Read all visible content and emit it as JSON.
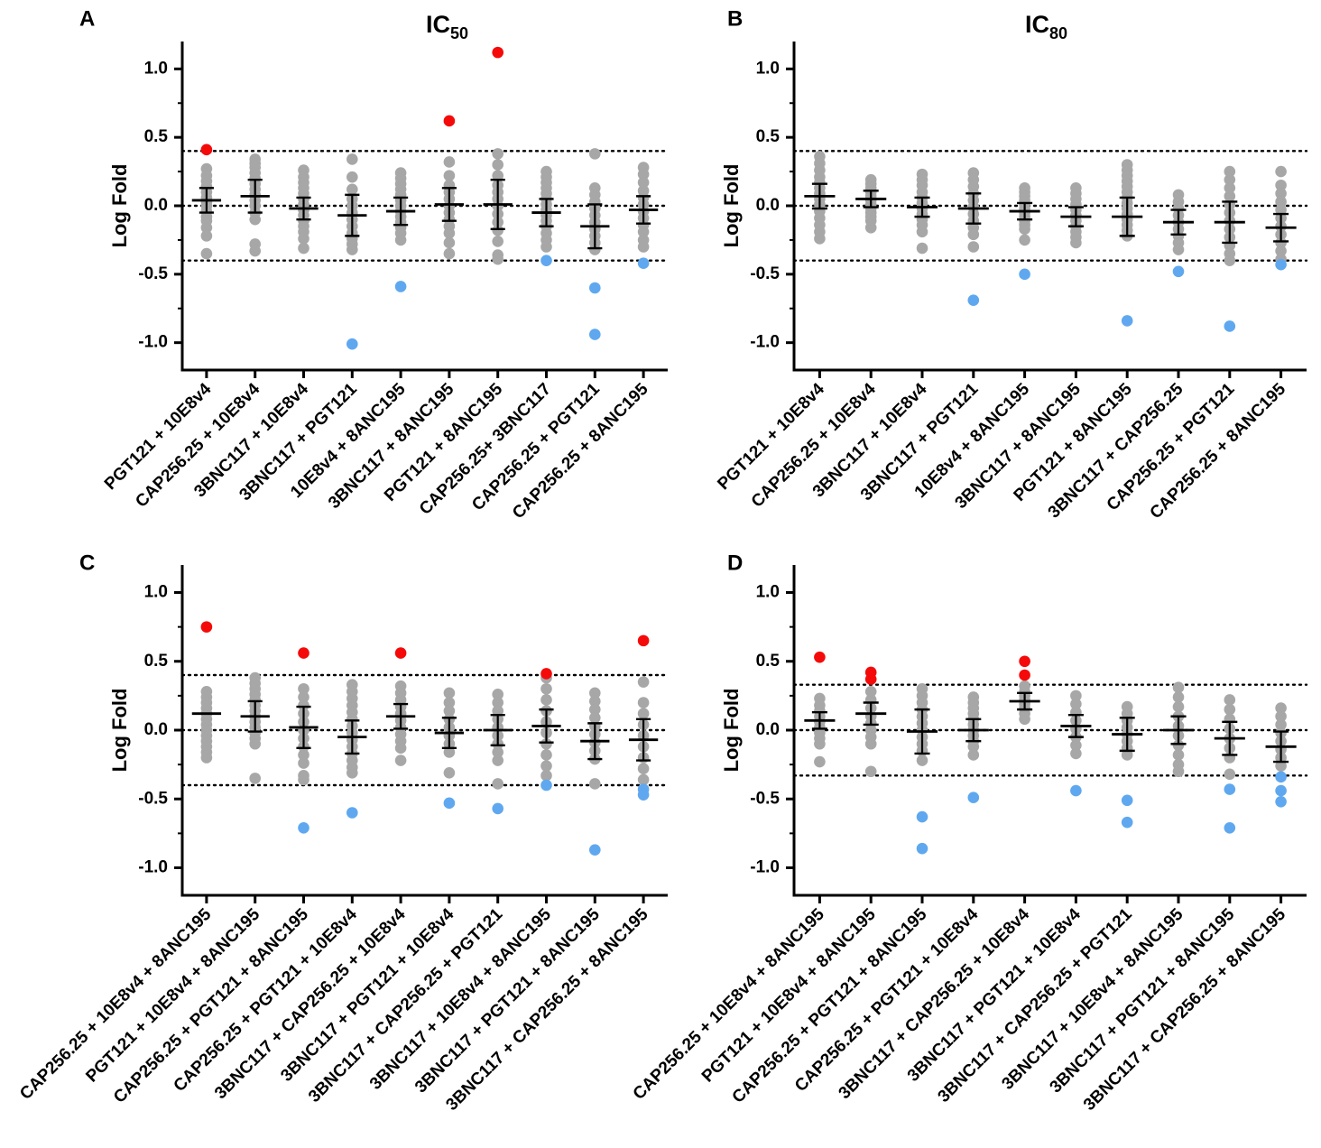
{
  "colors": {
    "gray": "#a7a7a7",
    "red": "#f50a0a",
    "blue": "#5fa8ef",
    "axis": "#000000"
  },
  "chart_data": [
    {
      "type": "scatter",
      "panel": "A",
      "title_main": "IC",
      "title_sub": "50",
      "ylabel": "Log Fold",
      "ylim": [
        -1.2,
        1.2
      ],
      "yticks": [
        "1.0",
        "0.5",
        "0.0",
        "-0.5",
        "-1.0"
      ],
      "threshold": 0.4,
      "categories": [
        "PGT121 + 10E8v4",
        "CAP256.25 + 10E8v4",
        "3BNC117 + 10E8v4",
        "3BNC117 + PGT121",
        "10E8v4 + 8ANC195",
        "3BNC117 + 8ANC195",
        "PGT121 + 8ANC195",
        "CAP256.25+ 3BNC117",
        "CAP256.25 + PGT121",
        "CAP256.25 + 8ANC195"
      ],
      "mean": [
        0.04,
        0.07,
        -0.02,
        -0.07,
        -0.04,
        0.01,
        0.01,
        -0.05,
        -0.15,
        -0.03
      ],
      "err": [
        0.09,
        0.12,
        0.08,
        0.15,
        0.1,
        0.12,
        0.18,
        0.1,
        0.16,
        0.1
      ],
      "gray_points": [
        [
          0.27,
          0.22,
          0.18,
          0.14,
          0.1,
          0.06,
          0.03,
          0.0,
          -0.04,
          -0.08,
          -0.11,
          -0.16,
          -0.22,
          -0.35
        ],
        [
          0.34,
          0.31,
          0.28,
          0.24,
          0.2,
          0.16,
          0.12,
          0.08,
          0.04,
          0.0,
          -0.05,
          -0.1,
          -0.28,
          -0.33
        ],
        [
          0.26,
          0.21,
          0.17,
          0.13,
          0.09,
          0.05,
          0.01,
          -0.03,
          -0.07,
          -0.11,
          -0.15,
          -0.19,
          -0.24,
          -0.31
        ],
        [
          0.34,
          0.21,
          0.12,
          0.05,
          0.0,
          -0.05,
          -0.1,
          -0.15,
          -0.2,
          -0.24,
          -0.28,
          -0.32
        ],
        [
          0.24,
          0.2,
          0.16,
          0.12,
          0.08,
          0.04,
          0.0,
          -0.04,
          -0.08,
          -0.12,
          -0.16,
          -0.2,
          -0.25
        ],
        [
          0.32,
          0.22,
          0.15,
          0.1,
          0.05,
          0.0,
          -0.05,
          -0.1,
          -0.15,
          -0.2,
          -0.27,
          -0.35
        ],
        [
          0.38,
          0.3,
          0.22,
          0.15,
          0.1,
          0.05,
          0.0,
          -0.06,
          -0.12,
          -0.18,
          -0.26,
          -0.36,
          -0.39
        ],
        [
          0.25,
          0.21,
          0.17,
          0.13,
          0.09,
          0.05,
          0.01,
          -0.03,
          -0.07,
          -0.11,
          -0.15,
          -0.2,
          -0.25,
          -0.3
        ],
        [
          0.38,
          0.13,
          0.08,
          0.03,
          -0.02,
          -0.07,
          -0.12,
          -0.17,
          -0.22,
          -0.27,
          -0.32
        ],
        [
          0.28,
          0.23,
          0.17,
          0.11,
          0.06,
          0.01,
          -0.04,
          -0.09,
          -0.14,
          -0.19,
          -0.25,
          -0.3
        ]
      ],
      "red_points": [
        [
          0.41
        ],
        [],
        [],
        [],
        [],
        [
          0.62
        ],
        [
          1.12
        ],
        [],
        [],
        []
      ],
      "blue_points": [
        [],
        [],
        [],
        [
          -1.01
        ],
        [
          -0.59
        ],
        [],
        [],
        [
          -0.4
        ],
        [
          -0.6,
          -0.94
        ],
        [
          -0.42
        ]
      ]
    },
    {
      "type": "scatter",
      "panel": "B",
      "title_main": "IC",
      "title_sub": "80",
      "ylabel": "Log Fold",
      "ylim": [
        -1.2,
        1.2
      ],
      "yticks": [
        "1.0",
        "0.5",
        "0.0",
        "-0.5",
        "-1.0"
      ],
      "threshold": 0.4,
      "categories": [
        "PGT121 + 10E8v4",
        "CAP256.25 + 10E8v4",
        "3BNC117 + 10E8v4",
        "3BNC117 + PGT121",
        "10E8v4 + 8ANC195",
        "3BNC117 + 8ANC195",
        "PGT121 + 8ANC195",
        "3BNC117 + CAP256.25",
        "CAP256.25 + PGT121",
        "CAP256.25 + 8ANC195"
      ],
      "mean": [
        0.07,
        0.05,
        -0.01,
        -0.02,
        -0.04,
        -0.08,
        -0.08,
        -0.12,
        -0.12,
        -0.16
      ],
      "err": [
        0.09,
        0.06,
        0.07,
        0.11,
        0.06,
        0.07,
        0.14,
        0.09,
        0.15,
        0.1
      ],
      "gray_points": [
        [
          0.36,
          0.31,
          0.26,
          0.21,
          0.17,
          0.13,
          0.09,
          0.05,
          0.01,
          -0.04,
          -0.09,
          -0.14,
          -0.19,
          -0.24
        ],
        [
          0.19,
          0.16,
          0.13,
          0.1,
          0.07,
          0.04,
          0.01,
          -0.02,
          -0.05,
          -0.08,
          -0.11,
          -0.16
        ],
        [
          0.23,
          0.19,
          0.15,
          0.1,
          0.06,
          0.02,
          -0.02,
          -0.06,
          -0.1,
          -0.14,
          -0.19,
          -0.31
        ],
        [
          0.24,
          0.19,
          0.14,
          0.09,
          0.04,
          -0.01,
          -0.06,
          -0.11,
          -0.16,
          -0.21,
          -0.3
        ],
        [
          0.13,
          0.1,
          0.07,
          0.04,
          0.01,
          -0.02,
          -0.05,
          -0.08,
          -0.11,
          -0.14,
          -0.17,
          -0.25
        ],
        [
          0.13,
          0.09,
          0.05,
          0.01,
          -0.03,
          -0.07,
          -0.11,
          -0.15,
          -0.19,
          -0.23,
          -0.27
        ],
        [
          0.3,
          0.26,
          0.22,
          0.18,
          0.14,
          0.1,
          0.06,
          0.02,
          -0.02,
          -0.06,
          -0.1,
          -0.14,
          -0.18,
          -0.22
        ],
        [
          0.08,
          0.03,
          -0.02,
          -0.07,
          -0.12,
          -0.17,
          -0.22,
          -0.27,
          -0.32
        ],
        [
          0.25,
          0.19,
          0.13,
          0.07,
          0.01,
          -0.05,
          -0.11,
          -0.17,
          -0.23,
          -0.29,
          -0.35,
          -0.4
        ],
        [
          0.25,
          0.15,
          0.09,
          0.03,
          -0.03,
          -0.09,
          -0.15,
          -0.21,
          -0.27,
          -0.33,
          -0.39
        ]
      ],
      "red_points": [
        [],
        [],
        [],
        [],
        [],
        [],
        [],
        [],
        [],
        []
      ],
      "blue_points": [
        [],
        [],
        [],
        [
          -0.69
        ],
        [
          -0.5
        ],
        [],
        [
          -0.84
        ],
        [
          -0.48
        ],
        [
          -0.88
        ],
        [
          -0.43
        ]
      ]
    },
    {
      "type": "scatter",
      "panel": "C",
      "title_main": "",
      "title_sub": "",
      "ylabel": "Log Fold",
      "ylim": [
        -1.2,
        1.2
      ],
      "yticks": [
        "1.0",
        "0.5",
        "0.0",
        "-0.5",
        "-1.0"
      ],
      "threshold": 0.4,
      "categories": [
        "CAP256.25 + 10E8v4 + 8ANC195",
        "PGT121 + 10E8v4 + 8ANC195",
        "CAP256.25 + PGT121 + 8ANC195",
        "CAP256.25 + PGT121 + 10E8v4",
        "3BNC117 + CAP256.25 + 10E8v4",
        "3BNC117 + PGT121 + 10E8v4",
        "3BNC117 + CAP256.25 + PGT121",
        "3BNC117 + 10E8v4 + 8ANC195",
        "3BNC117 + PGT121 + 8ANC195",
        "3BNC117 + CAP256.25 + 8ANC195"
      ],
      "mean": [
        0.12,
        0.1,
        0.02,
        -0.05,
        0.1,
        -0.02,
        0.0,
        0.03,
        -0.08,
        -0.07
      ],
      "err": [
        0.0,
        0.11,
        0.15,
        0.12,
        0.09,
        0.11,
        0.11,
        0.12,
        0.13,
        0.15
      ],
      "gray_points": [
        [
          0.28,
          0.24,
          0.2,
          0.16,
          0.12,
          0.08,
          0.04,
          0.0,
          -0.04,
          -0.08,
          -0.12,
          -0.16,
          -0.2
        ],
        [
          0.38,
          0.34,
          0.3,
          0.26,
          0.22,
          0.18,
          0.14,
          0.1,
          0.06,
          0.02,
          -0.02,
          -0.06,
          -0.1,
          -0.35
        ],
        [
          0.3,
          0.24,
          0.18,
          0.12,
          0.06,
          0.0,
          -0.06,
          -0.12,
          -0.18,
          -0.24,
          -0.33,
          -0.36
        ],
        [
          0.33,
          0.28,
          0.23,
          0.18,
          0.13,
          0.08,
          0.03,
          -0.02,
          -0.07,
          -0.12,
          -0.17,
          -0.22,
          -0.27,
          -0.31
        ],
        [
          0.32,
          0.27,
          0.22,
          0.17,
          0.12,
          0.07,
          0.02,
          -0.03,
          -0.08,
          -0.13,
          -0.22
        ],
        [
          0.27,
          0.2,
          0.14,
          0.08,
          0.02,
          -0.04,
          -0.1,
          -0.16,
          -0.31
        ],
        [
          0.26,
          0.2,
          0.14,
          0.08,
          0.02,
          -0.04,
          -0.1,
          -0.16,
          -0.22,
          -0.39
        ],
        [
          0.38,
          0.3,
          0.22,
          0.14,
          0.06,
          -0.02,
          -0.1,
          -0.18,
          -0.26,
          -0.33
        ],
        [
          0.27,
          0.21,
          0.15,
          0.09,
          0.03,
          -0.03,
          -0.09,
          -0.15,
          -0.21,
          -0.39
        ],
        [
          0.35,
          0.2,
          0.12,
          0.04,
          -0.04,
          -0.12,
          -0.2,
          -0.28,
          -0.36
        ]
      ],
      "red_points": [
        [
          0.75
        ],
        [],
        [
          0.56
        ],
        [],
        [
          0.56
        ],
        [],
        [],
        [
          0.41
        ],
        [],
        [
          0.65
        ]
      ],
      "blue_points": [
        [],
        [],
        [
          -0.71
        ],
        [
          -0.6
        ],
        [],
        [
          -0.53
        ],
        [
          -0.57
        ],
        [
          -0.4
        ],
        [
          -0.87
        ],
        [
          -0.43,
          -0.47
        ]
      ]
    },
    {
      "type": "scatter",
      "panel": "D",
      "title_main": "",
      "title_sub": "",
      "ylabel": "Log Fold",
      "ylim": [
        -1.2,
        1.2
      ],
      "yticks": [
        "1.0",
        "0.5",
        "0.0",
        "-0.5",
        "-1.0"
      ],
      "threshold": 0.33,
      "categories": [
        "CAP256.25 + 10E8v4 + 8ANC195",
        "PGT121 + 10E8v4 + 8ANC195",
        "CAP256.25 + PGT121 + 8ANC195",
        "CAP256.25 + PGT121 + 10E8v4",
        "3BNC117 + CAP256.25 + 10E8v4",
        "3BNC117 + PGT121 + 10E8v4",
        "3BNC117 + CAP256.25 + PGT121",
        "3BNC117 + 10E8v4 + 8ANC195",
        "3BNC117 + PGT121 + 8ANC195",
        "3BNC117 + CAP256.25 + 8ANC195"
      ],
      "mean": [
        0.07,
        0.12,
        -0.01,
        0.0,
        0.21,
        0.03,
        -0.03,
        0.0,
        -0.06,
        -0.12
      ],
      "err": [
        0.06,
        0.08,
        0.16,
        0.08,
        0.06,
        0.08,
        0.12,
        0.1,
        0.12,
        0.11
      ],
      "gray_points": [
        [
          0.23,
          0.18,
          0.14,
          0.1,
          0.06,
          0.02,
          -0.02,
          -0.06,
          -0.1,
          -0.23
        ],
        [
          0.28,
          0.22,
          0.16,
          0.1,
          0.05,
          0.0,
          -0.05,
          -0.1,
          -0.3
        ],
        [
          0.3,
          0.25,
          0.2,
          0.15,
          0.1,
          0.05,
          0.0,
          -0.05,
          -0.1,
          -0.15,
          -0.22
        ],
        [
          0.24,
          0.2,
          0.16,
          0.12,
          0.08,
          0.04,
          0.0,
          -0.04,
          -0.08,
          -0.12,
          -0.18
        ],
        [
          0.32,
          0.28,
          0.25,
          0.22,
          0.19,
          0.16,
          0.12,
          0.08
        ],
        [
          0.25,
          0.19,
          0.13,
          0.07,
          0.01,
          -0.05,
          -0.11,
          -0.17
        ],
        [
          0.17,
          0.12,
          0.07,
          0.02,
          -0.03,
          -0.08,
          -0.13,
          -0.18
        ],
        [
          0.31,
          0.24,
          0.17,
          0.1,
          0.03,
          -0.04,
          -0.11,
          -0.18,
          -0.25,
          -0.3
        ],
        [
          0.22,
          0.15,
          0.08,
          0.01,
          -0.06,
          -0.13,
          -0.2,
          -0.32
        ],
        [
          0.16,
          0.1,
          0.04,
          -0.02,
          -0.08,
          -0.14,
          -0.2,
          -0.26
        ]
      ],
      "red_points": [
        [
          0.53
        ],
        [
          0.42,
          0.37
        ],
        [],
        [],
        [
          0.5,
          0.4
        ],
        [],
        [],
        [],
        [],
        []
      ],
      "blue_points": [
        [],
        [],
        [
          -0.63,
          -0.86
        ],
        [
          -0.49
        ],
        [],
        [
          -0.44
        ],
        [
          -0.51,
          -0.67
        ],
        [],
        [
          -0.43,
          -0.71
        ],
        [
          -0.34,
          -0.44,
          -0.52
        ]
      ]
    }
  ]
}
